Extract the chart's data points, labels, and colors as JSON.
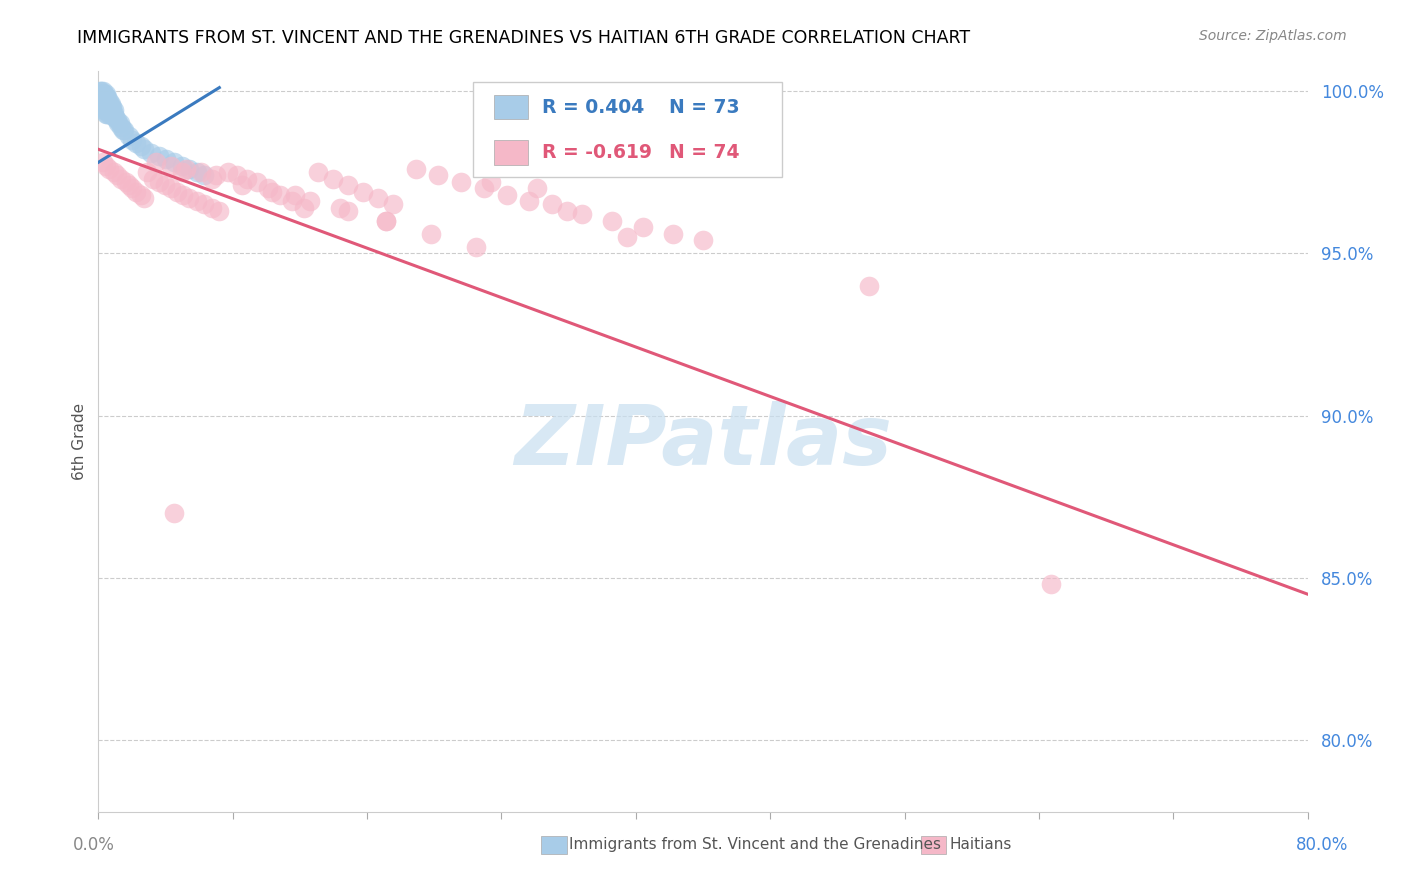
{
  "title": "IMMIGRANTS FROM ST. VINCENT AND THE GRENADINES VS HAITIAN 6TH GRADE CORRELATION CHART",
  "source": "Source: ZipAtlas.com",
  "ylabel": "6th Grade",
  "ytick_vals": [
    0.8,
    0.85,
    0.9,
    0.95,
    1.0
  ],
  "ytick_labels": [
    "80.0%",
    "85.0%",
    "90.0%",
    "95.0%",
    "100.0%"
  ],
  "xtick_left": "0.0%",
  "xtick_right": "80.0%",
  "xlim": [
    0.0,
    0.8
  ],
  "ylim": [
    0.778,
    1.006
  ],
  "blue_R_text": "R = 0.404",
  "blue_N_text": "N = 73",
  "pink_R_text": "R = -0.619",
  "pink_N_text": "N = 74",
  "blue_scatter_color": "#a8cce8",
  "pink_scatter_color": "#f5b8c8",
  "blue_line_color": "#3a7abf",
  "pink_line_color": "#e05878",
  "blue_legend_color": "#a8cce8",
  "pink_legend_color": "#f5b8c8",
  "blue_text_color": "#3a7abf",
  "pink_text_color": "#e05878",
  "rn_text_color": "#333333",
  "ytick_color": "#4488dd",
  "xtick_color": "#888888",
  "xtick_right_color": "#4488dd",
  "watermark_color": "#c8dff0",
  "watermark_text": "ZIPatlas",
  "legend_label_blue": "Immigrants from St. Vincent and the Grenadines",
  "legend_label_pink": "Haitians",
  "blue_line_x0": 0.0,
  "blue_line_x1": 0.08,
  "blue_line_y0": 0.978,
  "blue_line_y1": 1.001,
  "pink_line_x0": 0.0,
  "pink_line_x1": 0.8,
  "pink_line_y0": 0.982,
  "pink_line_y1": 0.845,
  "blue_x": [
    0.001,
    0.001,
    0.002,
    0.002,
    0.002,
    0.002,
    0.003,
    0.003,
    0.003,
    0.003,
    0.003,
    0.003,
    0.003,
    0.003,
    0.003,
    0.004,
    0.004,
    0.004,
    0.004,
    0.004,
    0.004,
    0.004,
    0.004,
    0.004,
    0.005,
    0.005,
    0.005,
    0.005,
    0.005,
    0.005,
    0.005,
    0.005,
    0.006,
    0.006,
    0.006,
    0.006,
    0.006,
    0.006,
    0.007,
    0.007,
    0.007,
    0.007,
    0.007,
    0.008,
    0.008,
    0.008,
    0.008,
    0.009,
    0.009,
    0.009,
    0.01,
    0.01,
    0.01,
    0.011,
    0.012,
    0.013,
    0.014,
    0.015,
    0.016,
    0.017,
    0.02,
    0.022,
    0.025,
    0.028,
    0.03,
    0.035,
    0.04,
    0.045,
    0.05,
    0.055,
    0.06,
    0.065,
    0.07
  ],
  "blue_y": [
    0.999,
    1.0,
    0.999,
    0.998,
    1.0,
    0.999,
    0.999,
    0.998,
    0.997,
    1.0,
    0.999,
    0.998,
    0.997,
    0.996,
    0.999,
    0.999,
    0.998,
    0.997,
    0.996,
    0.998,
    0.997,
    0.996,
    0.995,
    0.994,
    0.998,
    0.997,
    0.996,
    0.995,
    0.994,
    0.993,
    0.999,
    0.998,
    0.998,
    0.997,
    0.996,
    0.995,
    0.994,
    0.993,
    0.997,
    0.996,
    0.995,
    0.994,
    0.993,
    0.996,
    0.995,
    0.994,
    0.993,
    0.995,
    0.994,
    0.993,
    0.994,
    0.993,
    0.992,
    0.992,
    0.991,
    0.99,
    0.99,
    0.989,
    0.988,
    0.988,
    0.986,
    0.985,
    0.984,
    0.983,
    0.982,
    0.981,
    0.98,
    0.979,
    0.978,
    0.977,
    0.976,
    0.975,
    0.974
  ],
  "pink_x": [
    0.003,
    0.005,
    0.007,
    0.01,
    0.012,
    0.015,
    0.018,
    0.02,
    0.022,
    0.025,
    0.028,
    0.03,
    0.032,
    0.036,
    0.04,
    0.044,
    0.048,
    0.052,
    0.056,
    0.06,
    0.065,
    0.07,
    0.075,
    0.08,
    0.086,
    0.092,
    0.098,
    0.105,
    0.112,
    0.12,
    0.128,
    0.136,
    0.145,
    0.155,
    0.165,
    0.175,
    0.185,
    0.195,
    0.21,
    0.225,
    0.24,
    0.255,
    0.27,
    0.285,
    0.3,
    0.32,
    0.34,
    0.36,
    0.38,
    0.4,
    0.13,
    0.16,
    0.19,
    0.35,
    0.51,
    0.26,
    0.29,
    0.055,
    0.075,
    0.095,
    0.115,
    0.14,
    0.165,
    0.19,
    0.22,
    0.25,
    0.038,
    0.048,
    0.058,
    0.068,
    0.078,
    0.05,
    0.31,
    0.63
  ],
  "pink_y": [
    0.978,
    0.977,
    0.976,
    0.975,
    0.974,
    0.973,
    0.972,
    0.971,
    0.97,
    0.969,
    0.968,
    0.967,
    0.975,
    0.973,
    0.972,
    0.971,
    0.97,
    0.969,
    0.968,
    0.967,
    0.966,
    0.965,
    0.964,
    0.963,
    0.975,
    0.974,
    0.973,
    0.972,
    0.97,
    0.968,
    0.966,
    0.964,
    0.975,
    0.973,
    0.971,
    0.969,
    0.967,
    0.965,
    0.976,
    0.974,
    0.972,
    0.97,
    0.968,
    0.966,
    0.965,
    0.962,
    0.96,
    0.958,
    0.956,
    0.954,
    0.968,
    0.964,
    0.96,
    0.955,
    0.94,
    0.972,
    0.97,
    0.975,
    0.973,
    0.971,
    0.969,
    0.966,
    0.963,
    0.96,
    0.956,
    0.952,
    0.978,
    0.977,
    0.976,
    0.975,
    0.974,
    0.87,
    0.963,
    0.848
  ]
}
